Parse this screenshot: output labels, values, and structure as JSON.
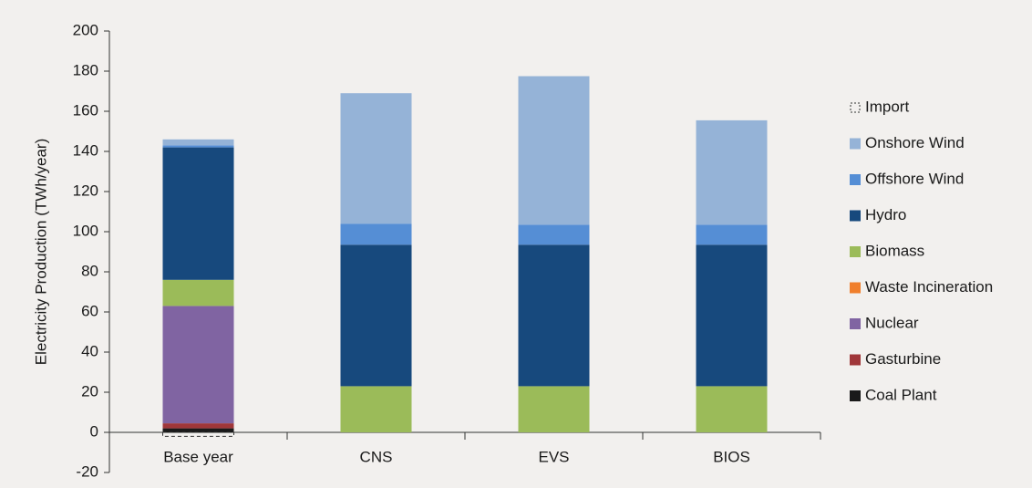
{
  "chart_data": {
    "type": "stacked_bar",
    "y_label": "Electricity Production (TWh/year)",
    "categories": [
      "Base year",
      "CNS",
      "EVS",
      "BIOS"
    ],
    "ylim": [
      -20,
      200
    ],
    "yticks": [
      -20,
      0,
      20,
      40,
      60,
      80,
      100,
      120,
      140,
      160,
      180,
      200
    ],
    "grid": false,
    "legend": "right",
    "series": [
      {
        "name": "Coal Plant",
        "color": "#1a1a1a",
        "values": [
          2,
          0,
          0,
          0
        ]
      },
      {
        "name": "Gasturbine",
        "color": "#a0373a",
        "values": [
          2.5,
          0,
          0,
          0
        ]
      },
      {
        "name": "Nuclear",
        "color": "#8064a2",
        "values": [
          58.5,
          0,
          0,
          0
        ]
      },
      {
        "name": "Waste Incineration",
        "color": "#f07f2c",
        "values": [
          0,
          0,
          0,
          0
        ]
      },
      {
        "name": "Biomass",
        "color": "#9bbb59",
        "values": [
          13,
          23,
          23,
          23
        ]
      },
      {
        "name": "Hydro",
        "color": "#17497d",
        "values": [
          66,
          70.5,
          70.5,
          70.5
        ]
      },
      {
        "name": "Offshore Wind",
        "color": "#558ed5",
        "values": [
          1,
          10.5,
          10,
          10
        ]
      },
      {
        "name": "Onshore Wind",
        "color": "#95b3d7",
        "values": [
          3,
          65,
          74,
          52
        ]
      },
      {
        "name": "Import",
        "color": "none",
        "values": [
          -2,
          0,
          0,
          0
        ]
      }
    ]
  }
}
